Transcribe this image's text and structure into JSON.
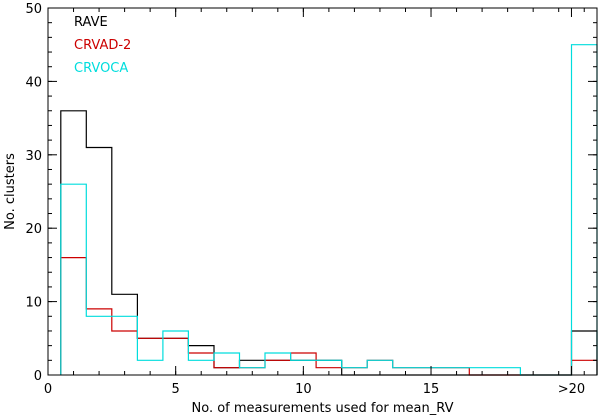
{
  "chart_data": {
    "type": "bar",
    "histogram_style": "step",
    "xlabel": "No. of measurements used for mean_RV",
    "ylabel": "No. clusters",
    "xlim": [
      0,
      21.5
    ],
    "ylim": [
      0,
      50
    ],
    "x_ticks": [
      {
        "value": 0,
        "label": "0"
      },
      {
        "value": 5,
        "label": "5"
      },
      {
        "value": 10,
        "label": "10"
      },
      {
        "value": 15,
        "label": "15"
      },
      {
        "value": 20.5,
        "label": ">20"
      }
    ],
    "x_minor_tick_step": 1,
    "y_ticks": [
      {
        "value": 0,
        "label": "0"
      },
      {
        "value": 10,
        "label": "10"
      },
      {
        "value": 20,
        "label": "20"
      },
      {
        "value": 30,
        "label": "30"
      },
      {
        "value": 40,
        "label": "40"
      },
      {
        "value": 50,
        "label": "50"
      }
    ],
    "y_minor_tick_step": 2,
    "grid": false,
    "legend_position": "top-left",
    "bins": [
      "1",
      "2",
      "3",
      "4",
      "5",
      "6",
      "7",
      "8",
      "9",
      "10",
      "11",
      "12",
      "13",
      "14",
      "15",
      "16",
      "17",
      "18",
      "19",
      "20",
      ">20"
    ],
    "series": [
      {
        "name": "RAVE",
        "color": "#000000",
        "values": [
          36,
          31,
          11,
          5,
          5,
          4,
          1,
          2,
          2,
          2,
          2,
          0,
          0,
          0,
          0,
          0,
          0,
          0,
          0,
          0,
          6
        ]
      },
      {
        "name": "CRVAD-2",
        "color": "#cc0000",
        "values": [
          16,
          9,
          6,
          5,
          5,
          3,
          1,
          1,
          2,
          3,
          1,
          1,
          2,
          1,
          1,
          1,
          0,
          0,
          0,
          0,
          2
        ]
      },
      {
        "name": "CRVOCA",
        "color": "#00dddd",
        "values": [
          26,
          8,
          8,
          2,
          6,
          2,
          3,
          1,
          3,
          2,
          2,
          1,
          2,
          1,
          1,
          1,
          1,
          1,
          0,
          0,
          45
        ]
      }
    ]
  }
}
